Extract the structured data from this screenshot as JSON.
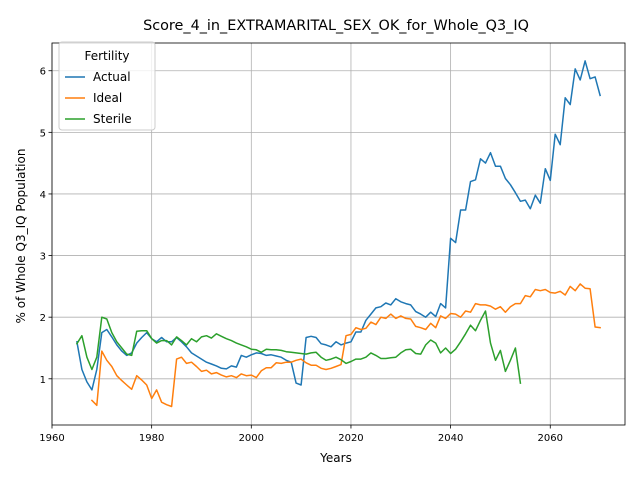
{
  "chart_data": {
    "type": "line",
    "title": "Score_4_in_EXTRAMARITAL_SEX_OK_for_Whole_Q3_IQ",
    "xlabel": "Years",
    "ylabel": "% of Whole Q3_IQ Population",
    "xlim": [
      1960,
      2075
    ],
    "ylim": [
      0.25,
      6.45
    ],
    "xticks": [
      1960,
      1980,
      2000,
      2020,
      2040,
      2060
    ],
    "yticks": [
      1,
      2,
      3,
      4,
      5,
      6
    ],
    "grid": true,
    "legend": {
      "title": "Fertility",
      "position": "top-left"
    },
    "series": [
      {
        "name": "Actual",
        "color": "#1f77b4",
        "x": [
          1965,
          1966,
          1967,
          1968,
          1969,
          1970,
          1971,
          1972,
          1973,
          1974,
          1975,
          1976,
          1977,
          1978,
          1979,
          1980,
          1981,
          1982,
          1983,
          1984,
          1985,
          1986,
          1987,
          1988,
          1989,
          1990,
          1991,
          1992,
          1993,
          1994,
          1995,
          1996,
          1997,
          1998,
          1999,
          2000,
          2001,
          2002,
          2003,
          2004,
          2005,
          2006,
          2007,
          2008,
          2009,
          2010,
          2011,
          2012,
          2013,
          2014,
          2015,
          2016,
          2017,
          2018,
          2019,
          2020,
          2021,
          2022,
          2023,
          2024,
          2025,
          2026,
          2027,
          2028,
          2029,
          2030,
          2031,
          2032,
          2033,
          2034,
          2035,
          2036,
          2037,
          2038,
          2039,
          2040,
          2041,
          2042,
          2043,
          2044,
          2045,
          2046,
          2047,
          2048,
          2049,
          2050,
          2051,
          2052,
          2053,
          2054,
          2055,
          2056,
          2057,
          2058,
          2059,
          2060,
          2061,
          2062,
          2063,
          2064,
          2065,
          2066,
          2067,
          2068,
          2069,
          2070
        ],
        "values": [
          1.6,
          1.15,
          0.95,
          0.82,
          1.15,
          1.75,
          1.8,
          1.68,
          1.55,
          1.45,
          1.38,
          1.42,
          1.58,
          1.67,
          1.75,
          1.65,
          1.6,
          1.67,
          1.6,
          1.6,
          1.67,
          1.6,
          1.52,
          1.42,
          1.37,
          1.32,
          1.27,
          1.24,
          1.21,
          1.17,
          1.16,
          1.21,
          1.19,
          1.38,
          1.35,
          1.39,
          1.42,
          1.41,
          1.38,
          1.39,
          1.37,
          1.35,
          1.3,
          1.27,
          0.93,
          0.9,
          1.67,
          1.69,
          1.67,
          1.57,
          1.55,
          1.52,
          1.6,
          1.55,
          1.58,
          1.6,
          1.76,
          1.76,
          1.95,
          2.05,
          2.15,
          2.17,
          2.23,
          2.2,
          2.3,
          2.25,
          2.22,
          2.2,
          2.09,
          2.05,
          2.0,
          2.08,
          2.01,
          2.22,
          2.15,
          3.28,
          3.21,
          3.74,
          3.74,
          4.2,
          4.23,
          4.57,
          4.5,
          4.67,
          4.45,
          4.45,
          4.25,
          4.15,
          4.02,
          3.88,
          3.9,
          3.76,
          3.98,
          3.85,
          4.41,
          4.22,
          4.97,
          4.8,
          5.56,
          5.45,
          6.03,
          5.85,
          6.16,
          5.87,
          5.9,
          5.6
        ]
      },
      {
        "name": "Ideal",
        "color": "#ff7f0e",
        "x": [
          1968,
          1969,
          1970,
          1971,
          1972,
          1973,
          1974,
          1975,
          1976,
          1977,
          1978,
          1979,
          1980,
          1981,
          1982,
          1983,
          1984,
          1985,
          1986,
          1987,
          1988,
          1989,
          1990,
          1991,
          1992,
          1993,
          1994,
          1995,
          1996,
          1997,
          1998,
          1999,
          2000,
          2001,
          2002,
          2003,
          2004,
          2005,
          2006,
          2007,
          2008,
          2009,
          2010,
          2011,
          2012,
          2013,
          2014,
          2015,
          2016,
          2017,
          2018,
          2019,
          2020,
          2021,
          2022,
          2023,
          2024,
          2025,
          2026,
          2027,
          2028,
          2029,
          2030,
          2031,
          2032,
          2033,
          2034,
          2035,
          2036,
          2037,
          2038,
          2039,
          2040,
          2041,
          2042,
          2043,
          2044,
          2045,
          2046,
          2047,
          2048,
          2049,
          2050,
          2051,
          2052,
          2053,
          2054,
          2055,
          2056,
          2057,
          2058,
          2059,
          2060,
          2061,
          2062,
          2063,
          2064,
          2065,
          2066,
          2067,
          2068,
          2069,
          2070
        ],
        "values": [
          0.65,
          0.57,
          1.45,
          1.3,
          1.2,
          1.05,
          0.97,
          0.9,
          0.83,
          1.05,
          0.98,
          0.9,
          0.68,
          0.82,
          0.62,
          0.58,
          0.55,
          1.32,
          1.35,
          1.25,
          1.27,
          1.2,
          1.12,
          1.14,
          1.08,
          1.1,
          1.06,
          1.03,
          1.05,
          1.02,
          1.08,
          1.05,
          1.06,
          1.02,
          1.13,
          1.18,
          1.18,
          1.26,
          1.25,
          1.27,
          1.27,
          1.3,
          1.32,
          1.26,
          1.22,
          1.22,
          1.17,
          1.15,
          1.17,
          1.2,
          1.23,
          1.7,
          1.72,
          1.83,
          1.8,
          1.82,
          1.92,
          1.88,
          2.0,
          1.98,
          2.05,
          1.98,
          2.02,
          1.98,
          1.97,
          1.85,
          1.83,
          1.8,
          1.9,
          1.83,
          2.02,
          1.98,
          2.06,
          2.05,
          2.0,
          2.1,
          2.08,
          2.22,
          2.2,
          2.2,
          2.18,
          2.13,
          2.17,
          2.08,
          2.17,
          2.22,
          2.22,
          2.35,
          2.33,
          2.45,
          2.43,
          2.45,
          2.4,
          2.39,
          2.42,
          2.36,
          2.5,
          2.43,
          2.54,
          2.47,
          2.46,
          1.84,
          1.83
        ]
      },
      {
        "name": "Sterile",
        "color": "#2ca02c",
        "x": [
          1965,
          1966,
          1967,
          1968,
          1969,
          1970,
          1971,
          1972,
          1973,
          1974,
          1975,
          1976,
          1977,
          1978,
          1979,
          1980,
          1981,
          1982,
          1983,
          1984,
          1985,
          1986,
          1987,
          1988,
          1989,
          1990,
          1991,
          1992,
          1993,
          1994,
          1995,
          1996,
          1997,
          1998,
          1999,
          2000,
          2001,
          2002,
          2003,
          2004,
          2005,
          2006,
          2007,
          2008,
          2009,
          2010,
          2011,
          2012,
          2013,
          2014,
          2015,
          2016,
          2017,
          2018,
          2019,
          2020,
          2021,
          2022,
          2023,
          2024,
          2025,
          2026,
          2027,
          2028,
          2029,
          2030,
          2031,
          2032,
          2033,
          2034,
          2035,
          2036,
          2037,
          2038,
          2039,
          2040,
          2041,
          2042,
          2043,
          2044,
          2045,
          2046,
          2047,
          2048,
          2049,
          2050,
          2051,
          2052,
          2053,
          2054
        ],
        "values": [
          1.57,
          1.7,
          1.35,
          1.15,
          1.35,
          2.0,
          1.97,
          1.75,
          1.6,
          1.5,
          1.4,
          1.38,
          1.77,
          1.78,
          1.78,
          1.65,
          1.58,
          1.62,
          1.62,
          1.55,
          1.68,
          1.62,
          1.55,
          1.65,
          1.6,
          1.68,
          1.7,
          1.66,
          1.73,
          1.69,
          1.65,
          1.62,
          1.58,
          1.55,
          1.52,
          1.48,
          1.47,
          1.43,
          1.48,
          1.47,
          1.47,
          1.46,
          1.44,
          1.43,
          1.42,
          1.41,
          1.4,
          1.42,
          1.43,
          1.35,
          1.3,
          1.32,
          1.35,
          1.31,
          1.25,
          1.28,
          1.32,
          1.32,
          1.35,
          1.42,
          1.38,
          1.33,
          1.33,
          1.34,
          1.35,
          1.42,
          1.47,
          1.48,
          1.41,
          1.4,
          1.55,
          1.63,
          1.58,
          1.42,
          1.5,
          1.41,
          1.48,
          1.6,
          1.73,
          1.87,
          1.78,
          1.95,
          2.1,
          1.58,
          1.3,
          1.46,
          1.12,
          1.3,
          1.5,
          0.93
        ]
      }
    ]
  }
}
